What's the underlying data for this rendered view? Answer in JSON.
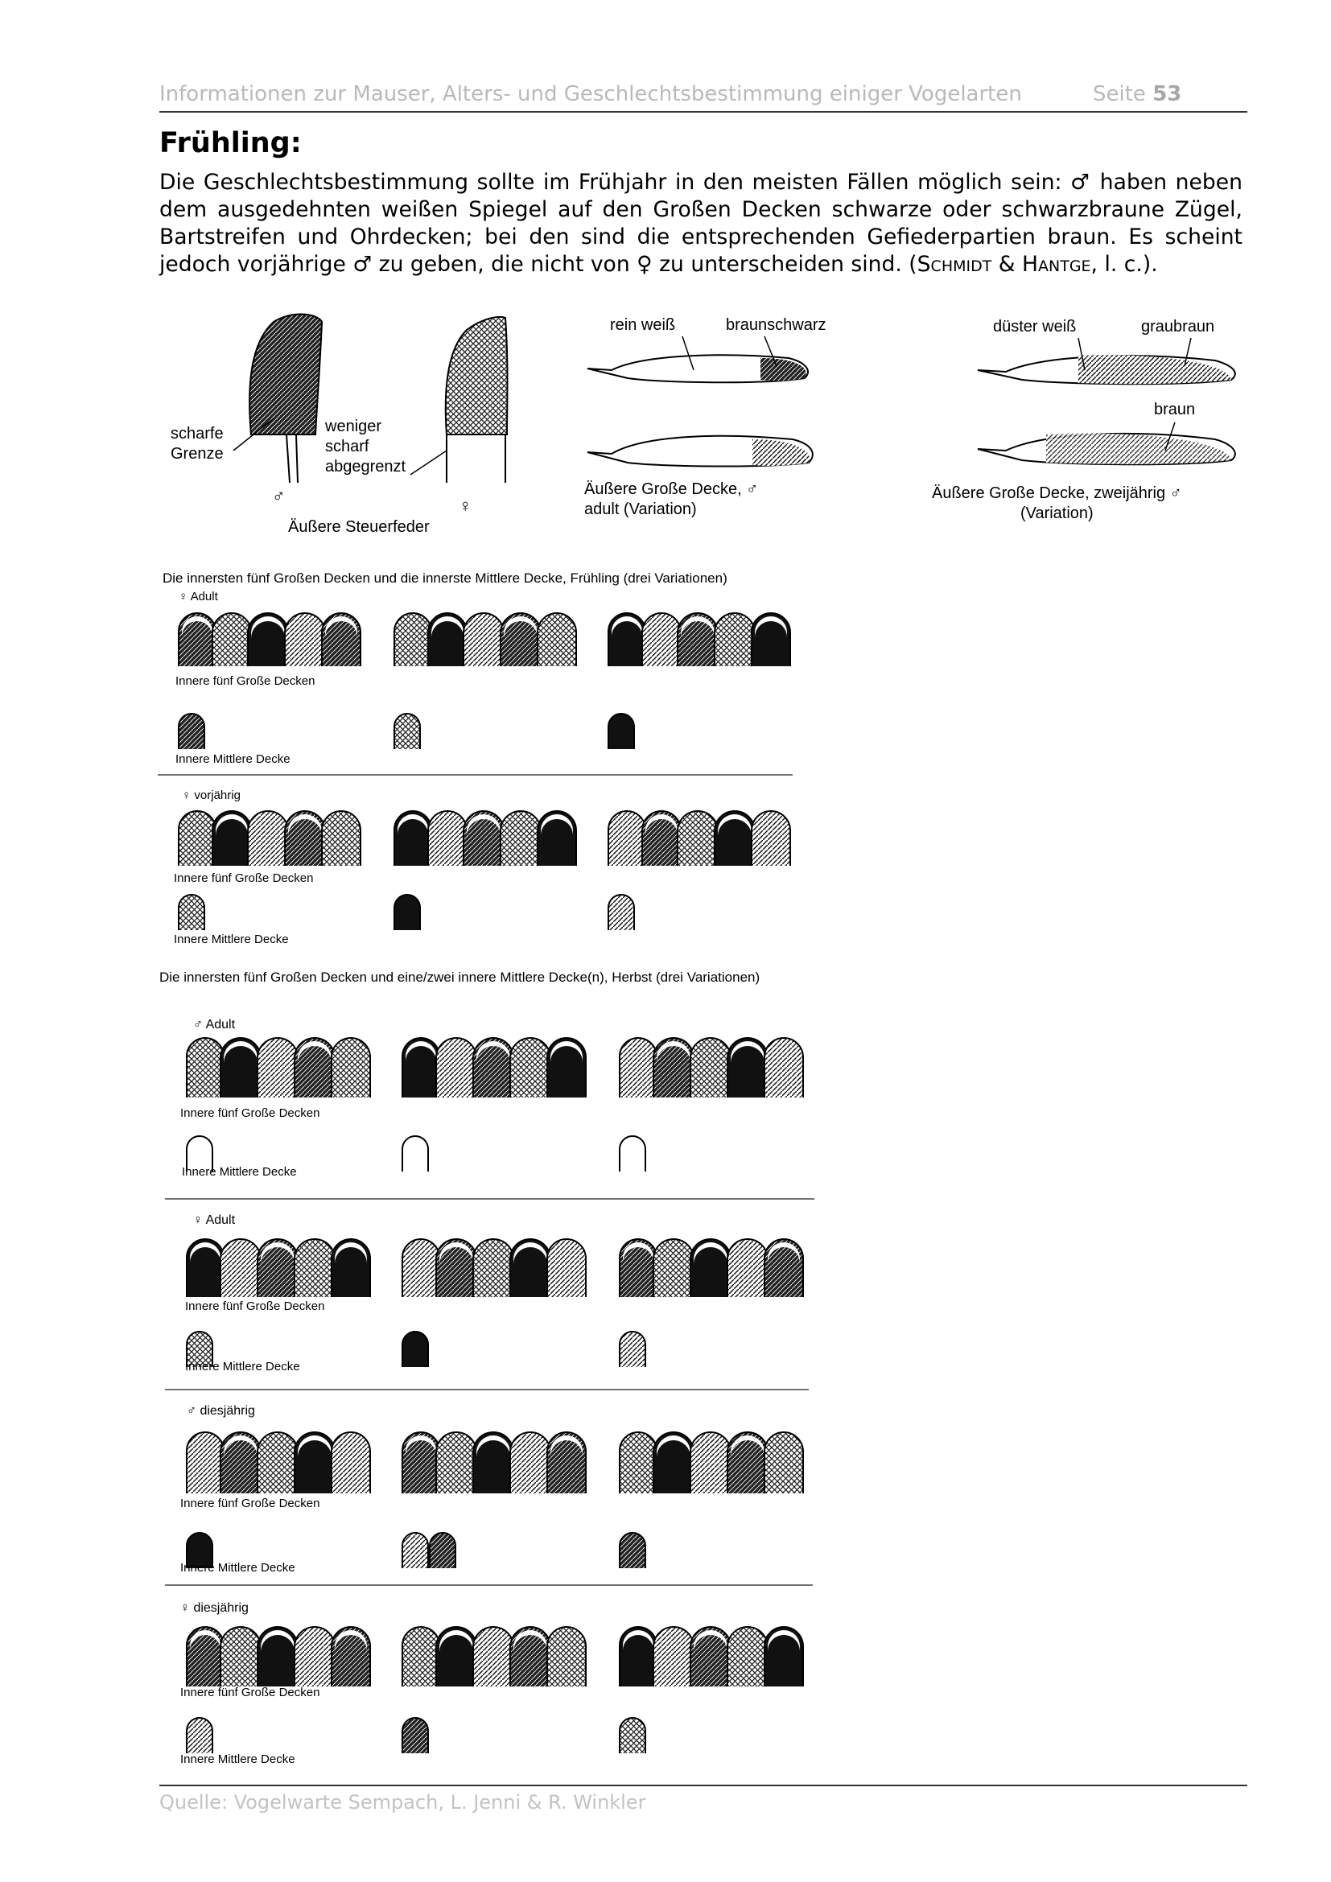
{
  "header": {
    "title": "Informationen zur Mauser, Alters- und Geschlechtsbestimmung einiger Vogelarten",
    "page_label": "Seite",
    "page_number": "53"
  },
  "heading": "Frühling:",
  "paragraph": {
    "part1": "Die Geschlechtsbestimmung sollte im Frühjahr in den meisten Fällen möglich sein: ♂ haben neben dem ausgedehnten weißen Spiegel auf den Großen Decken schwarze oder schwarzbraune Zügel, Bartstreifen und Ohrdecken; bei den sind die entsprechenden Gefiederpartien braun. Es scheint jedoch vorjährige ♂ zu geben, die nicht von ♀ zu unterscheiden sind. (",
    "author1": "Schmidt",
    "amp": " & ",
    "author2": "Hantge",
    "part2": ", l. c.)."
  },
  "figure_top": {
    "tail": {
      "label_left": "scharfe\nGrenze",
      "label_mid": "weniger\nscharf\nabgegrenzt",
      "male": "♂",
      "female": "♀",
      "caption": "Äußere Steuerfeder"
    },
    "adult": {
      "label_white": "rein weiß",
      "label_dark": "braunschwarz",
      "caption": "Äußere Große Decke, ♂\nadult (Variation)"
    },
    "second_year": {
      "label_white": "düster weiß",
      "label_dark": "graubraun",
      "label_brown": "braun",
      "caption": "Äußere Große Decke, zweijährig ♂\n(Variation)"
    }
  },
  "spring": {
    "title": "Die innersten fünf Großen Decken und die innerste Mittlere Decke, Frühling (drei Variationen)",
    "groups": [
      {
        "label": "♀ Adult",
        "big_label": "Innere fünf Große Decken",
        "mid_label": "Innere Mittlere Decke"
      },
      {
        "label": "♀ vorjährig",
        "big_label": "Innere fünf Große Decken",
        "mid_label": "Innere Mittlere Decke"
      }
    ]
  },
  "autumn": {
    "title": "Die innersten fünf Großen Decken und eine/zwei innere Mittlere Decke(n), Herbst (drei Variationen)",
    "groups": [
      {
        "label": "♂ Adult",
        "big_label": "Innere fünf Große Decken",
        "mid_label": "Innere Mittlere Decke"
      },
      {
        "label": "♀ Adult",
        "big_label": "Innere fünf Große Decken",
        "mid_label": "Innere Mittlere Decke"
      },
      {
        "label": "♂ diesjährig",
        "big_label": "Innere fünf Große Decken",
        "mid_label": "Innere Mittlere Decke"
      },
      {
        "label": "♀ diesjährig",
        "big_label": "Innere fünf Große Decken",
        "mid_label": "Innere Mittlere Decke"
      }
    ]
  },
  "footer": "Quelle: Vogelwarte Sempach, L. Jenni & R. Winkler"
}
